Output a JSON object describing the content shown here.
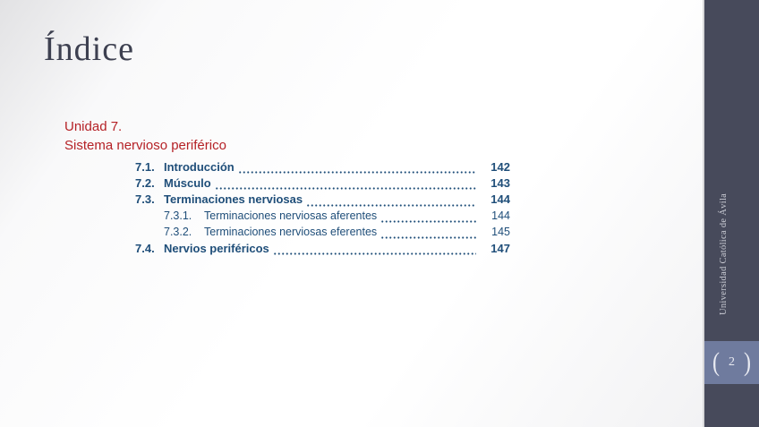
{
  "slide": {
    "title": "Índice"
  },
  "heading": {
    "line1": "Unidad 7.",
    "line2": "Sistema nervioso periférico"
  },
  "toc": {
    "rows": [
      {
        "num": "7.1.",
        "label": "Introducción",
        "page": "142",
        "sub": false
      },
      {
        "num": "7.2.",
        "label": "Músculo",
        "page": "143",
        "sub": false
      },
      {
        "num": "7.3.",
        "label": "Terminaciones nerviosas",
        "page": "144",
        "sub": false
      },
      {
        "num": "7.3.1.",
        "label": "Terminaciones nerviosas aferentes",
        "page": "144",
        "sub": true
      },
      {
        "num": "7.3.2.",
        "label": "Terminaciones nerviosas eferentes",
        "page": "145",
        "sub": true
      },
      {
        "num": "7.4.",
        "label": "Nervios periféricos",
        "page": "147",
        "sub": false
      }
    ]
  },
  "sidebar": {
    "vertical_label": "Universidad Católica de Ávila",
    "bracket_left": "(",
    "page_number": "2",
    "bracket_right": ")"
  },
  "colors": {
    "accent_red": "#b52126",
    "toc_blue": "#1f4e79",
    "title_gray": "#3d4050",
    "sidebar_bg": "#474a5b",
    "page_box_bg": "#6f7b9e"
  }
}
